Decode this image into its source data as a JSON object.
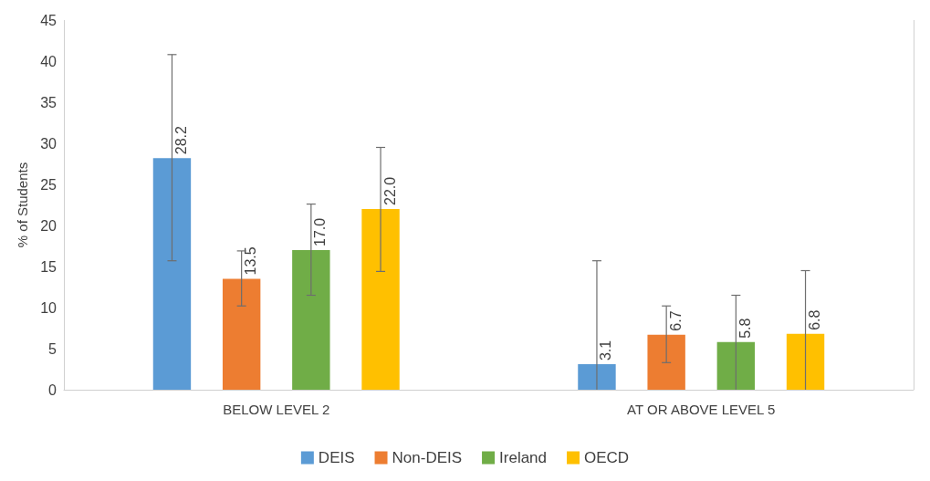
{
  "chart_data": {
    "type": "bar",
    "ylabel": "% of Students",
    "categories": [
      "BELOW LEVEL 2",
      "AT OR ABOVE LEVEL 5"
    ],
    "series": [
      {
        "name": "DEIS",
        "color": "#5b9bd5",
        "values": [
          28.2,
          3.1
        ],
        "value_labels": [
          "28.2",
          "3.1"
        ],
        "errors": [
          [
            15.7,
            40.8
          ],
          [
            0,
            15.7
          ]
        ]
      },
      {
        "name": "Non-DEIS",
        "color": "#ed7d31",
        "values": [
          13.5,
          6.7
        ],
        "value_labels": [
          "13.5",
          "6.7"
        ],
        "errors": [
          [
            10.2,
            16.9
          ],
          [
            3.3,
            10.2
          ]
        ]
      },
      {
        "name": "Ireland",
        "color": "#70ad47",
        "values": [
          17.0,
          5.8
        ],
        "value_labels": [
          "17.0",
          "5.8"
        ],
        "errors": [
          [
            11.5,
            22.6
          ],
          [
            0,
            11.5
          ]
        ]
      },
      {
        "name": "OECD",
        "color": "#ffc000",
        "values": [
          22.0,
          6.8
        ],
        "value_labels": [
          "22.0",
          "6.8"
        ],
        "errors": [
          [
            14.4,
            29.5
          ],
          [
            0,
            14.5
          ]
        ]
      }
    ],
    "ylim": [
      0,
      45
    ],
    "yticks": [
      0,
      5,
      10,
      15,
      20,
      25,
      30,
      35,
      40,
      45
    ],
    "grid": false,
    "legend": "bottom"
  }
}
